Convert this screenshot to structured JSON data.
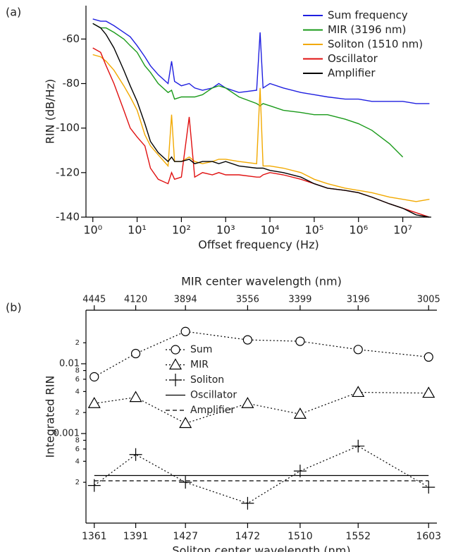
{
  "chart_data": [
    {
      "type": "line",
      "panel_label": "(a)",
      "xlabel": "Offset frequency (Hz)",
      "ylabel": "RIN (dB/Hz)",
      "xscale": "log",
      "xlim": [
        0.7,
        44000000
      ],
      "ylim": [
        -140,
        -45
      ],
      "xticks": [
        {
          "value": 1,
          "label": "10⁰"
        },
        {
          "value": 10,
          "label": "10¹"
        },
        {
          "value": 100,
          "label": "10²"
        },
        {
          "value": 1000,
          "label": "10³"
        },
        {
          "value": 10000,
          "label": "10⁴"
        },
        {
          "value": 100000,
          "label": "10⁵"
        },
        {
          "value": 1000000,
          "label": "10⁶"
        },
        {
          "value": 10000000,
          "label": "10⁷"
        }
      ],
      "yticks": [
        -140,
        -120,
        -100,
        -80,
        -60
      ],
      "legend": "upper right",
      "x": [
        1,
        1.5,
        2,
        3,
        5,
        7,
        10,
        15,
        20,
        30,
        50,
        60,
        70,
        100,
        150,
        200,
        300,
        500,
        700,
        1000,
        2000,
        5000,
        6000,
        7000,
        10000,
        20000,
        50000,
        100000,
        200000,
        500000,
        1000000,
        2000000,
        5000000,
        10000000,
        20000000,
        40000000
      ],
      "series": [
        {
          "name": "Sum frequency",
          "color": "#1f1fe0",
          "values": [
            -51,
            -52,
            -52,
            -54,
            -57,
            -59,
            -63,
            -68,
            -72,
            -76,
            -80,
            -70,
            -79,
            -81,
            -80,
            -82,
            -83,
            -82,
            -80,
            -82,
            -84,
            -83,
            -57,
            -82,
            -80,
            -82,
            -84,
            -85,
            -86,
            -87,
            -87,
            -88,
            -88,
            -88,
            -89,
            -89
          ]
        },
        {
          "name": "MIR (3196 nm)",
          "color": "#1a9a1a",
          "values": [
            -53,
            -55,
            -55,
            -57,
            -60,
            -63,
            -66,
            -72,
            -75,
            -80,
            -84,
            -83,
            -87,
            -86,
            -86,
            -86,
            -85,
            -82,
            -81,
            -82,
            -86,
            -89,
            -90,
            -89,
            -90,
            -92,
            -93,
            -94,
            -94,
            -96,
            -98,
            -101,
            -107,
            -113,
            null,
            null
          ]
        },
        {
          "name": "Soliton (1510 nm)",
          "color": "#f2a900",
          "values": [
            -67,
            -68,
            -70,
            -74,
            -81,
            -86,
            -92,
            -103,
            -108,
            -112,
            -117,
            -94,
            -115,
            -115,
            -113,
            -115,
            -116,
            -115,
            -114,
            -114,
            -115,
            -116,
            -82,
            -117,
            -117,
            -118,
            -120,
            -123,
            -125,
            -127,
            -128,
            -129,
            -131,
            -132,
            -133,
            -132
          ]
        },
        {
          "name": "Oscillator",
          "color": "#e01010",
          "values": [
            -64,
            -66,
            -72,
            -80,
            -92,
            -100,
            -104,
            -108,
            -118,
            -123,
            -125,
            -120,
            -123,
            -122,
            -95,
            -122,
            -120,
            -121,
            -120,
            -121,
            -121,
            -122,
            -122,
            -121,
            -120,
            -121,
            -123,
            -125,
            -127,
            -128,
            -129,
            -131,
            -134,
            -136,
            -138,
            -140
          ]
        },
        {
          "name": "Amplifier",
          "color": "#000000",
          "values": [
            -53,
            -55,
            -58,
            -64,
            -74,
            -81,
            -88,
            -98,
            -106,
            -111,
            -115,
            -113,
            -115,
            -115,
            -114,
            -116,
            -115,
            -115,
            -116,
            -115,
            -117,
            -118,
            -118,
            -118,
            -119,
            -120,
            -122,
            -125,
            -127,
            -128,
            -129,
            -131,
            -134,
            -136,
            -139,
            -140
          ]
        }
      ]
    },
    {
      "type": "line",
      "panel_label": "(b)",
      "xlabel": "Soliton center wavelength (nm)",
      "x2label": "MIR center wavelength (nm)",
      "ylabel": "Integrated RIN",
      "yscale": "log",
      "xlim": [
        1355,
        1609
      ],
      "ylim": [
        5.2e-05,
        0.0586
      ],
      "xticks": [
        1361,
        1391,
        1427,
        1472,
        1510,
        1552,
        1603
      ],
      "x2ticks": [
        4445,
        4120,
        3894,
        3556,
        3399,
        3196,
        3005
      ],
      "yticks": [
        {
          "value": 0.0002,
          "label": "2"
        },
        {
          "value": 0.0004,
          "label": "4"
        },
        {
          "value": 0.0006,
          "label": "6"
        },
        {
          "value": 0.0008,
          "label": "8"
        },
        0.001,
        {
          "value": 0.002,
          "label": "2"
        },
        {
          "value": 0.004,
          "label": "4"
        },
        {
          "value": 0.006,
          "label": "6"
        },
        {
          "value": 0.008,
          "label": "8"
        },
        0.01,
        {
          "value": 0.02,
          "label": "2"
        }
      ],
      "legend": "upper left",
      "x": [
        1361,
        1391,
        1427,
        1472,
        1510,
        1552,
        1603
      ],
      "series": [
        {
          "name": "Sum",
          "color": "#000000",
          "marker": "circle",
          "dash": "dotted",
          "values": [
            0.0065,
            0.014,
            0.029,
            0.022,
            0.021,
            0.016,
            0.0125
          ]
        },
        {
          "name": "MIR",
          "color": "#000000",
          "marker": "triangle",
          "dash": "dotted",
          "values": [
            0.0027,
            0.0033,
            0.0014,
            0.0027,
            0.0019,
            0.0039,
            0.0038
          ]
        },
        {
          "name": "Soliton",
          "color": "#000000",
          "marker": "plus",
          "dash": "dotted",
          "values": [
            0.00018,
            0.0005,
            0.0002,
            0.0001,
            0.00029,
            0.00066,
            0.00017
          ]
        },
        {
          "name": "Oscillator",
          "color": "#000000",
          "dash": "solid",
          "values": [
            0.00025,
            0.00025,
            0.00025,
            0.00025,
            0.00025,
            0.00025,
            0.00025
          ]
        },
        {
          "name": "Amplifier",
          "color": "#000000",
          "dash": "dashed",
          "values": [
            0.00021,
            0.00021,
            0.00021,
            0.00021,
            0.00021,
            0.00021,
            0.00021
          ]
        }
      ]
    }
  ]
}
